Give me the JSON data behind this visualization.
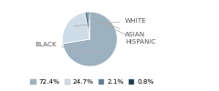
{
  "labels": [
    "BLACK",
    "WHITE",
    "ASIAN",
    "HISPANIC"
  ],
  "values": [
    72.4,
    24.7,
    2.1,
    0.8
  ],
  "colors": [
    "#9db2c0",
    "#cddce6",
    "#5b7f96",
    "#1e3d54"
  ],
  "legend_labels": [
    "72.4%",
    "24.7%",
    "2.1%",
    "0.8%"
  ],
  "legend_colors": [
    "#9db2c0",
    "#cddce6",
    "#5b7f96",
    "#1e3d54"
  ],
  "background_color": "#ffffff",
  "label_fontsize": 5.2,
  "legend_fontsize": 5.2,
  "label_color": "#555555",
  "line_color": "#aaaaaa"
}
